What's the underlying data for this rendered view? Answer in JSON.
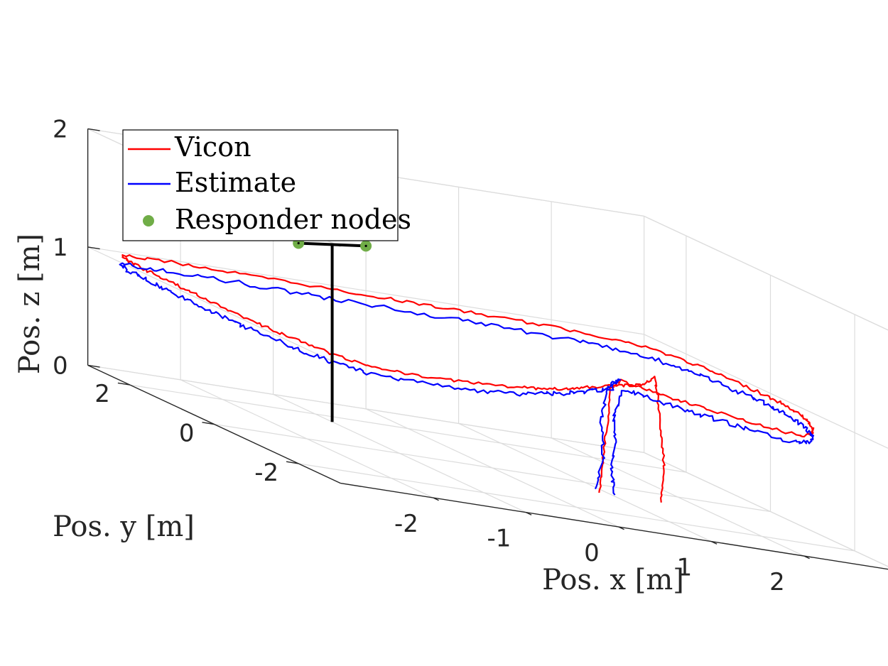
{
  "chart_data": {
    "type": "line3d",
    "title": "",
    "xlabel": "Pos. x [m]",
    "ylabel": "Pos. y [m]",
    "zlabel": "Pos. z [m]",
    "xlim": [
      -3,
      3
    ],
    "ylim": [
      -3,
      3
    ],
    "zlim": [
      0,
      2
    ],
    "xticks": [
      -2,
      -1,
      0,
      1,
      2
    ],
    "yticks": [
      -2,
      0,
      2
    ],
    "zticks": [
      0,
      1,
      2
    ],
    "grid": true,
    "legend_location": "top-left",
    "series": [
      {
        "name": "Vicon",
        "color": "#ff0000",
        "kind": "line",
        "points": [
          [
            1.55,
            -0.6,
            0.0
          ],
          [
            1.58,
            -0.6,
            0.3
          ],
          [
            1.55,
            -0.6,
            0.6
          ],
          [
            1.5,
            -0.62,
            0.9
          ],
          [
            1.45,
            -0.66,
            1.05
          ],
          [
            1.2,
            -0.9,
            1.0
          ],
          [
            0.8,
            -1.25,
            1.0
          ],
          [
            0.45,
            -1.55,
            1.0
          ],
          [
            0.05,
            -1.9,
            1.0
          ],
          [
            -0.35,
            -2.25,
            1.0
          ],
          [
            -0.75,
            -2.5,
            1.0
          ],
          [
            -1.2,
            -2.7,
            1.0
          ],
          [
            -1.7,
            -2.85,
            1.0
          ],
          [
            -2.2,
            -2.85,
            1.0
          ],
          [
            -2.55,
            -2.75,
            1.0
          ],
          [
            -2.72,
            -2.35,
            1.0
          ],
          [
            -2.82,
            -1.85,
            1.0
          ],
          [
            -2.88,
            -1.2,
            1.0
          ],
          [
            -2.9,
            -0.6,
            1.0
          ],
          [
            -2.9,
            0.0,
            1.0
          ],
          [
            -2.9,
            0.6,
            1.0
          ],
          [
            -2.88,
            1.2,
            1.0
          ],
          [
            -2.85,
            1.8,
            1.0
          ],
          [
            -2.85,
            2.3,
            1.0
          ],
          [
            -2.75,
            2.75,
            1.0
          ],
          [
            -2.3,
            2.85,
            1.0
          ],
          [
            -1.7,
            2.8,
            1.0
          ],
          [
            -1.1,
            2.75,
            1.0
          ],
          [
            -0.5,
            2.7,
            1.0
          ],
          [
            0.1,
            2.65,
            1.0
          ],
          [
            0.7,
            2.6,
            1.0
          ],
          [
            1.3,
            2.55,
            1.0
          ],
          [
            1.85,
            2.45,
            1.0
          ],
          [
            2.3,
            2.3,
            1.0
          ],
          [
            2.6,
            2.0,
            1.0
          ],
          [
            2.75,
            1.5,
            1.0
          ],
          [
            2.82,
            0.9,
            1.0
          ],
          [
            2.85,
            0.3,
            1.0
          ],
          [
            2.85,
            -0.3,
            1.0
          ],
          [
            2.8,
            -0.9,
            1.0
          ],
          [
            2.7,
            -1.5,
            1.0
          ],
          [
            2.5,
            -2.1,
            1.0
          ],
          [
            2.25,
            -2.65,
            1.0
          ],
          [
            2.0,
            -2.9,
            1.0
          ],
          [
            1.7,
            -2.5,
            1.0
          ],
          [
            1.45,
            -2.05,
            1.0
          ],
          [
            1.3,
            -1.7,
            1.0
          ],
          [
            1.12,
            -1.25,
            1.0
          ],
          [
            1.0,
            -0.85,
            1.0
          ],
          [
            0.95,
            -0.72,
            0.9
          ],
          [
            0.93,
            -0.68,
            0.6
          ],
          [
            0.9,
            -0.65,
            0.3
          ],
          [
            0.87,
            -0.62,
            0.0
          ]
        ]
      },
      {
        "name": "Estimate",
        "color": "#0000ff",
        "kind": "line",
        "points": [
          [
            0.85,
            -0.55,
            0.0
          ],
          [
            0.95,
            -0.55,
            0.3
          ],
          [
            0.9,
            -0.6,
            0.6
          ],
          [
            0.95,
            -0.65,
            0.9
          ],
          [
            1.05,
            -0.72,
            1.0
          ],
          [
            0.85,
            -0.95,
            0.93
          ],
          [
            0.5,
            -1.3,
            0.93
          ],
          [
            0.1,
            -1.7,
            0.93
          ],
          [
            -0.3,
            -2.05,
            0.93
          ],
          [
            -0.75,
            -2.4,
            0.93
          ],
          [
            -1.2,
            -2.6,
            0.93
          ],
          [
            -1.7,
            -2.75,
            0.93
          ],
          [
            -2.2,
            -2.75,
            0.93
          ],
          [
            -2.55,
            -2.65,
            0.93
          ],
          [
            -2.72,
            -2.3,
            0.93
          ],
          [
            -2.85,
            -1.8,
            0.93
          ],
          [
            -2.92,
            -1.2,
            0.93
          ],
          [
            -2.95,
            -0.6,
            0.93
          ],
          [
            -2.95,
            0.0,
            0.93
          ],
          [
            -2.95,
            0.6,
            0.93
          ],
          [
            -2.93,
            1.2,
            0.93
          ],
          [
            -2.9,
            1.8,
            0.93
          ],
          [
            -2.9,
            2.3,
            0.93
          ],
          [
            -2.78,
            2.7,
            0.93
          ],
          [
            -2.3,
            2.78,
            0.93
          ],
          [
            -1.7,
            2.72,
            0.93
          ],
          [
            -1.1,
            2.66,
            0.93
          ],
          [
            -0.5,
            2.6,
            0.93
          ],
          [
            0.1,
            2.55,
            0.93
          ],
          [
            0.7,
            2.5,
            0.93
          ],
          [
            1.3,
            2.45,
            0.93
          ],
          [
            1.85,
            2.35,
            0.93
          ],
          [
            2.3,
            2.2,
            0.93
          ],
          [
            2.58,
            1.9,
            0.93
          ],
          [
            2.72,
            1.45,
            0.93
          ],
          [
            2.8,
            0.9,
            0.93
          ],
          [
            2.83,
            0.3,
            0.93
          ],
          [
            2.83,
            -0.3,
            0.93
          ],
          [
            2.78,
            -0.9,
            0.93
          ],
          [
            2.68,
            -1.5,
            0.93
          ],
          [
            2.5,
            -2.1,
            0.93
          ],
          [
            2.25,
            -2.6,
            0.93
          ],
          [
            2.0,
            -2.82,
            0.93
          ],
          [
            1.72,
            -2.45,
            0.93
          ],
          [
            1.48,
            -2.0,
            0.93
          ],
          [
            1.32,
            -1.65,
            0.93
          ],
          [
            1.15,
            -1.2,
            0.93
          ],
          [
            1.05,
            -0.8,
            0.93
          ],
          [
            1.0,
            -0.7,
            0.7
          ],
          [
            1.02,
            -0.66,
            0.45
          ],
          [
            1.0,
            -0.63,
            0.2
          ],
          [
            1.05,
            -0.6,
            0.0
          ]
        ]
      },
      {
        "name": "Responder nodes",
        "color": "#70ad47",
        "kind": "markers",
        "points": [
          [
            -1.5,
            1.3,
            1.5
          ],
          [
            -0.5,
            1.9,
            1.5
          ]
        ]
      }
    ],
    "annotations": [
      {
        "kind": "mast",
        "color": "#000000",
        "points": [
          [
            -1.0,
            1.6,
            0.0
          ],
          [
            -1.0,
            1.6,
            1.5
          ]
        ]
      },
      {
        "kind": "crossbar",
        "color": "#000000",
        "points": [
          [
            -1.5,
            1.3,
            1.5
          ],
          [
            -0.5,
            1.9,
            1.5
          ]
        ]
      }
    ]
  }
}
